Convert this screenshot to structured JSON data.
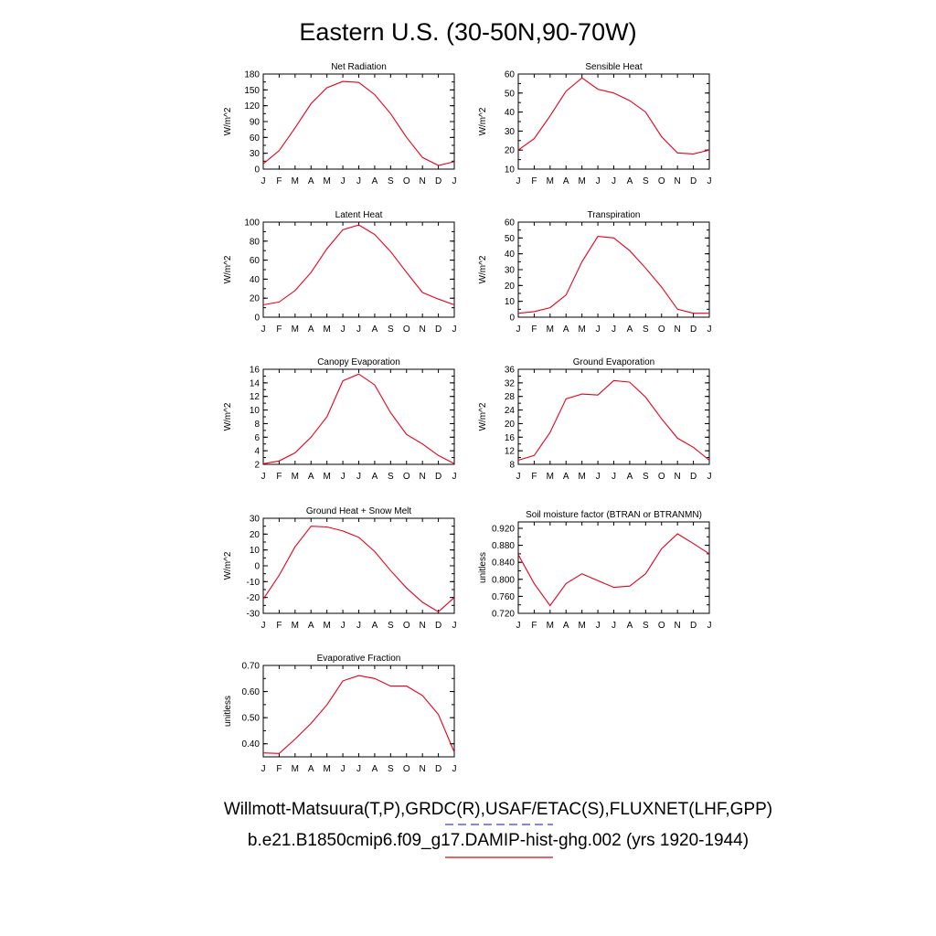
{
  "title": "Eastern U.S. (30-50N,90-70W)",
  "month_labels": [
    "J",
    "F",
    "M",
    "A",
    "M",
    "J",
    "J",
    "A",
    "S",
    "O",
    "N",
    "D",
    "J"
  ],
  "colors": {
    "model_line": "#e8001a",
    "obs_dash": "#3a3af0",
    "axes": "#000000"
  },
  "legend": {
    "obs_text": "Willmott-Matsuura(T,P),GRDC(R),USAF/ETAC(S),FLUXNET(LHF,GPP)",
    "model_text": "b.e21.B1850cmip6.f09_g17.DAMIP-hist-ghg.002 (yrs 1920-1944)"
  },
  "chart_data": [
    {
      "type": "line",
      "title": "Net Radiation",
      "ylabel": "W/m^2",
      "ylim": [
        0,
        180
      ],
      "yticks": [
        "0",
        "30",
        "60",
        "90",
        "120",
        "150",
        "180"
      ],
      "series": [
        {
          "values": [
            10,
            35,
            78,
            124,
            154,
            166,
            164,
            141,
            105,
            60,
            22,
            7,
            14
          ]
        }
      ]
    },
    {
      "type": "line",
      "title": "Sensible Heat",
      "ylabel": "W/m^2",
      "ylim": [
        10,
        60
      ],
      "yticks": [
        "10",
        "20",
        "30",
        "40",
        "50",
        "60"
      ],
      "series": [
        {
          "values": [
            20,
            26,
            38,
            51,
            58,
            52,
            50,
            46,
            40,
            27,
            18.5,
            18,
            20
          ]
        }
      ]
    },
    {
      "type": "line",
      "title": "Latent Heat",
      "ylabel": "W/m^2",
      "ylim": [
        0,
        100
      ],
      "yticks": [
        "0",
        "20",
        "40",
        "60",
        "80",
        "100"
      ],
      "series": [
        {
          "values": [
            13,
            16,
            28,
            47,
            72,
            92,
            97,
            87,
            69,
            47,
            26,
            19,
            13
          ]
        }
      ]
    },
    {
      "type": "line",
      "title": "Transpiration",
      "ylabel": "W/m^2",
      "ylim": [
        0,
        60
      ],
      "yticks": [
        "0",
        "10",
        "20",
        "30",
        "40",
        "50",
        "60"
      ],
      "series": [
        {
          "values": [
            2.5,
            3.5,
            6,
            14,
            35,
            51,
            50,
            42,
            31,
            19,
            5,
            2.5,
            2.5
          ]
        }
      ]
    },
    {
      "type": "line",
      "title": "Canopy Evaporation",
      "ylabel": "W/m^2",
      "ylim": [
        2,
        16
      ],
      "yticks": [
        "2",
        "4",
        "6",
        "8",
        "10",
        "12",
        "14",
        "16"
      ],
      "series": [
        {
          "values": [
            2.1,
            2.5,
            3.7,
            6.0,
            9.0,
            14.3,
            15.3,
            13.7,
            9.6,
            6.4,
            5.0,
            3.3,
            2.1
          ]
        }
      ]
    },
    {
      "type": "line",
      "title": "Ground Evaporation",
      "ylabel": "W/m^2",
      "ylim": [
        8,
        36
      ],
      "yticks": [
        "8",
        "12",
        "16",
        "20",
        "24",
        "28",
        "32",
        "36"
      ],
      "series": [
        {
          "values": [
            9.2,
            10.6,
            17.4,
            27.3,
            28.7,
            28.4,
            32.7,
            32.2,
            27.8,
            21.4,
            15.7,
            13.0,
            9.2
          ]
        }
      ]
    },
    {
      "type": "line",
      "title": "Ground Heat + Snow Melt",
      "ylabel": "W/m^2",
      "ylim": [
        -30,
        30
      ],
      "yticks": [
        "-30",
        "-20",
        "-10",
        "0",
        "10",
        "20",
        "30"
      ],
      "series": [
        {
          "values": [
            -21,
            -6,
            12,
            25,
            24.5,
            22,
            18,
            9,
            -3,
            -14,
            -23,
            -29,
            -20
          ]
        }
      ]
    },
    {
      "type": "line",
      "title": "Soil moisture factor (BTRAN or BTRANMN)",
      "ylabel": "unitless",
      "ylim": [
        0.72,
        0.935
      ],
      "yticks": [
        "0.720",
        "0.760",
        "0.800",
        "0.840",
        "0.880",
        "0.920"
      ],
      "series": [
        {
          "values": [
            0.858,
            0.79,
            0.738,
            0.79,
            0.813,
            0.797,
            0.781,
            0.784,
            0.813,
            0.872,
            0.907,
            0.884,
            0.86
          ]
        }
      ]
    },
    {
      "type": "line",
      "title": "Evaporative Fraction",
      "ylabel": "unitless",
      "ylim": [
        0.35,
        0.7
      ],
      "yticks": [
        "0.40",
        "0.50",
        "0.60",
        "0.70"
      ],
      "series": [
        {
          "values": [
            0.365,
            0.363,
            0.418,
            0.478,
            0.549,
            0.641,
            0.661,
            0.65,
            0.621,
            0.621,
            0.585,
            0.512,
            0.368
          ]
        }
      ]
    }
  ]
}
